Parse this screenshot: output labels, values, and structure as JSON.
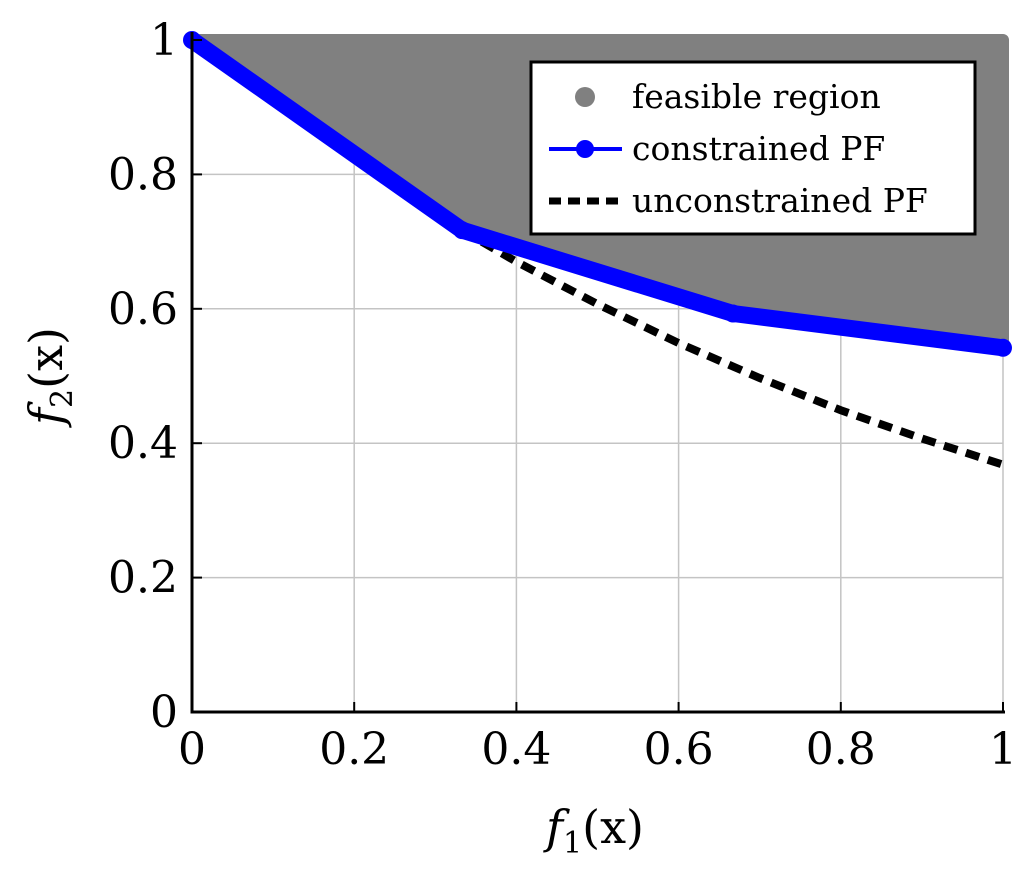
{
  "chart_data": {
    "type": "line",
    "xlabel": {
      "italic": "f",
      "sub": "1",
      "rest": "(x)"
    },
    "ylabel": {
      "italic": "f",
      "sub": "2",
      "rest": "(x)"
    },
    "xlim": [
      0,
      1
    ],
    "ylim": [
      0,
      1
    ],
    "x_ticks": [
      0,
      0.2,
      0.4,
      0.6,
      0.8,
      1
    ],
    "x_tick_labels": [
      "0",
      "0.2",
      "0.4",
      "0.6",
      "0.8",
      "1"
    ],
    "y_ticks": [
      0,
      0.2,
      0.4,
      0.6,
      0.8,
      1
    ],
    "y_tick_labels": [
      "0",
      "0.2",
      "0.4",
      "0.6",
      "0.8",
      "1"
    ],
    "grid": true,
    "legend_position": "top-right",
    "series": [
      {
        "name": "feasible region",
        "kind": "filled-region",
        "color": "#808080",
        "boundary_x": [
          0,
          0.333,
          0.667,
          1,
          1,
          0
        ],
        "boundary_y": [
          1,
          0.717,
          0.593,
          0.55,
          1,
          1
        ]
      },
      {
        "name": "constrained PF",
        "kind": "line",
        "color": "#0000ff",
        "x": [
          0,
          0.333,
          0.667,
          1
        ],
        "y": [
          1,
          0.717,
          0.593,
          0.542
        ]
      },
      {
        "name": "unconstrained PF",
        "kind": "dashed-line",
        "color": "#000000",
        "x": [
          0.333,
          0.4,
          0.5,
          0.6,
          0.7,
          0.8,
          0.9,
          1
        ],
        "y": [
          0.717,
          0.67,
          0.607,
          0.549,
          0.497,
          0.449,
          0.407,
          0.368
        ]
      }
    ]
  }
}
